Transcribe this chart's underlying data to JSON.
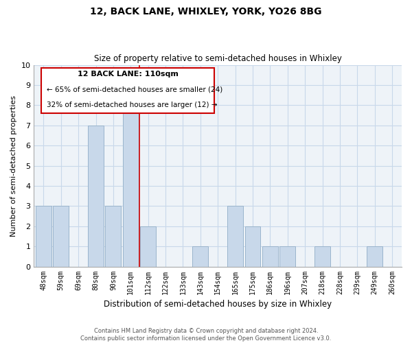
{
  "title": "12, BACK LANE, WHIXLEY, YORK, YO26 8BG",
  "subtitle": "Size of property relative to semi-detached houses in Whixley",
  "xlabel": "Distribution of semi-detached houses by size in Whixley",
  "ylabel": "Number of semi-detached properties",
  "bar_labels": [
    "48sqm",
    "59sqm",
    "69sqm",
    "80sqm",
    "90sqm",
    "101sqm",
    "112sqm",
    "122sqm",
    "133sqm",
    "143sqm",
    "154sqm",
    "165sqm",
    "175sqm",
    "186sqm",
    "196sqm",
    "207sqm",
    "218sqm",
    "228sqm",
    "239sqm",
    "249sqm",
    "260sqm"
  ],
  "bar_values": [
    3,
    3,
    0,
    7,
    3,
    8,
    2,
    0,
    0,
    1,
    0,
    3,
    2,
    1,
    1,
    0,
    1,
    0,
    0,
    1,
    0
  ],
  "bar_color": "#c8d8ea",
  "bar_edge_color": "#9ab4cc",
  "highlight_index": 5,
  "highlight_line_color": "#cc0000",
  "ylim": [
    0,
    10
  ],
  "yticks": [
    0,
    1,
    2,
    3,
    4,
    5,
    6,
    7,
    8,
    9,
    10
  ],
  "annotation_title": "12 BACK LANE: 110sqm",
  "annotation_line1": "← 65% of semi-detached houses are smaller (24)",
  "annotation_line2": "32% of semi-detached houses are larger (12) →",
  "annotation_box_color": "#ffffff",
  "annotation_box_edge": "#cc0000",
  "footer_line1": "Contains HM Land Registry data © Crown copyright and database right 2024.",
  "footer_line2": "Contains public sector information licensed under the Open Government Licence v3.0.",
  "grid_color": "#c8d8ea",
  "background_color": "#eef3f8"
}
